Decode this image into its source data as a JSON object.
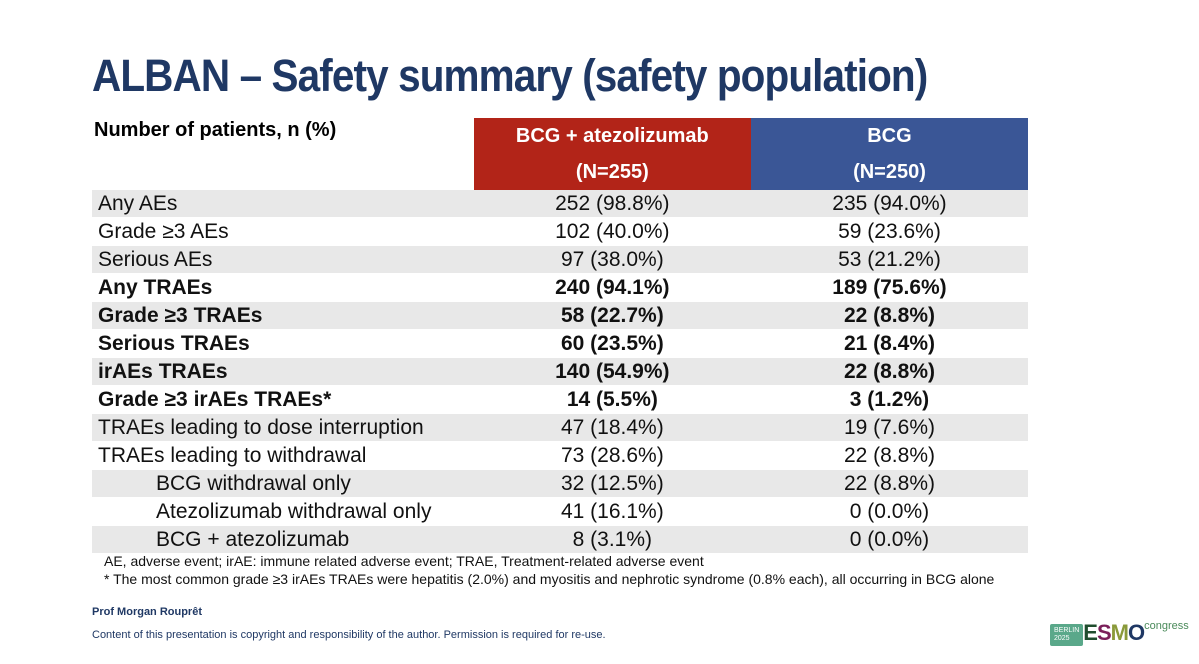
{
  "title": "ALBAN – Safety summary (safety population)",
  "header": {
    "label": "Number of patients, n (%)",
    "col1": "BCG + atezolizumab",
    "col1_n": "(N=255)",
    "col2": "BCG",
    "col2_n": "(N=250)"
  },
  "rows": [
    {
      "label": "Any AEs",
      "a": "252 (98.8%)",
      "b": "235 (94.0%)"
    },
    {
      "label": "Grade ≥3 AEs",
      "a": "102 (40.0%)",
      "b": "59 (23.6%)"
    },
    {
      "label": "Serious AEs",
      "a": "97 (38.0%)",
      "b": "53 (21.2%)"
    },
    {
      "label": "Any TRAEs",
      "a": "240 (94.1%)",
      "b": "189 (75.6%)"
    },
    {
      "label": "Grade ≥3 TRAEs",
      "a": "58 (22.7%)",
      "b": "22 (8.8%)"
    },
    {
      "label": "Serious TRAEs",
      "a": "60 (23.5%)",
      "b": "21 (8.4%)"
    },
    {
      "label": "irAEs TRAEs",
      "a": "140 (54.9%)",
      "b": "22 (8.8%)"
    },
    {
      "label": "Grade ≥3 irAEs TRAEs*",
      "a": "14 (5.5%)",
      "b": "3 (1.2%)"
    },
    {
      "label": "TRAEs leading to dose interruption",
      "a": "47 (18.4%)",
      "b": "19 (7.6%)"
    },
    {
      "label": "TRAEs leading to withdrawal",
      "a": "73 (28.6%)",
      "b": "22 (8.8%)"
    },
    {
      "label": "BCG withdrawal only",
      "a": "32 (12.5%)",
      "b": "22 (8.8%)"
    },
    {
      "label": "Atezolizumab withdrawal only",
      "a": "41 (16.1%)",
      "b": "0 (0.0%)"
    },
    {
      "label": "BCG + atezolizumab",
      "a": "8 (3.1%)",
      "b": "0 (0.0%)"
    }
  ],
  "footnote1": "AE, adverse event; irAE: immune related adverse event; TRAE, Treatment-related adverse event",
  "footnote2": "* The most common grade ≥3 irAEs TRAEs were hepatitis (2.0%) and myositis and nephrotic syndrome (0.8% each), all occurring in BCG alone",
  "author": "Prof Morgan Rouprêt",
  "copyright": "Content of this presentation is copyright and responsibility of the author. Permission is required for re-use.",
  "logo": {
    "city": "BERLIN",
    "year": "2025",
    "name": "ESMO",
    "suffix": "congress"
  }
}
